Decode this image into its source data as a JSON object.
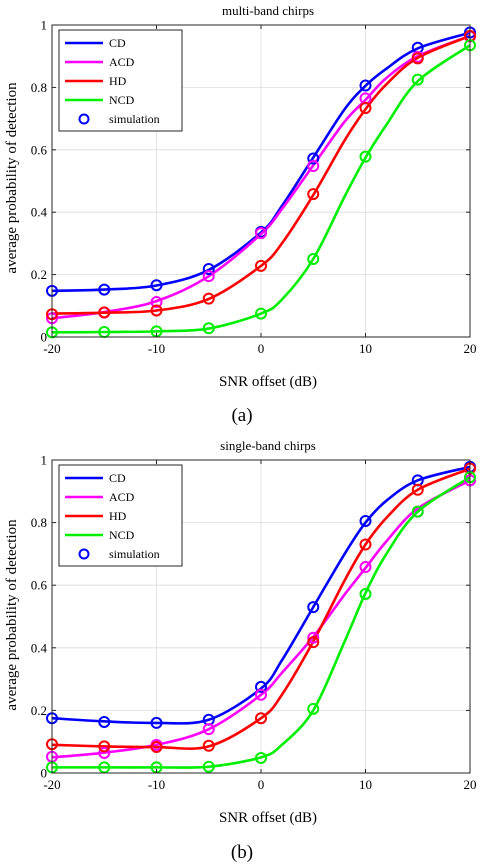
{
  "chart_data": [
    {
      "type": "line",
      "title": "multi-band chirps",
      "sublabel": "(a)",
      "xlabel": "SNR offset (dB)",
      "ylabel": "average probability of detection",
      "xlim": [
        -20,
        20
      ],
      "ylim": [
        0,
        1
      ],
      "xticks": [
        -20,
        -10,
        0,
        10,
        20
      ],
      "yticks": [
        0,
        0.2,
        0.4,
        0.6,
        0.8,
        1
      ],
      "ytick_labels": [
        "0",
        "0.2",
        "0.4",
        "0.6",
        "0.8",
        "1"
      ],
      "grid": true,
      "legend_position": "top-left",
      "sim_x": [
        -20,
        -15,
        -10,
        -5,
        0,
        5,
        10,
        15,
        20
      ],
      "series": [
        {
          "name": "CD",
          "color": "#0000ff",
          "x": [
            -20,
            -15,
            -10,
            -5,
            0,
            2,
            5,
            8,
            10,
            12,
            15,
            20
          ],
          "y": [
            0.148,
            0.152,
            0.165,
            0.215,
            0.335,
            0.42,
            0.575,
            0.73,
            0.805,
            0.86,
            0.925,
            0.975
          ],
          "sim": [
            0.148,
            0.152,
            0.166,
            0.218,
            0.337,
            0.572,
            0.806,
            0.927,
            0.976
          ]
        },
        {
          "name": "ACD",
          "color": "#ff00ff",
          "x": [
            -20,
            -15,
            -10,
            -5,
            0,
            2,
            5,
            8,
            10,
            12,
            15,
            20
          ],
          "y": [
            0.06,
            0.08,
            0.115,
            0.195,
            0.33,
            0.41,
            0.55,
            0.69,
            0.76,
            0.83,
            0.9,
            0.965
          ],
          "sim": [
            0.06,
            0.078,
            0.112,
            0.195,
            0.333,
            0.548,
            0.765,
            0.898,
            0.963
          ]
        },
        {
          "name": "HD",
          "color": "#ff0000",
          "x": [
            -20,
            -15,
            -10,
            -5,
            0,
            2,
            5,
            8,
            10,
            12,
            15,
            20
          ],
          "y": [
            0.075,
            0.078,
            0.085,
            0.122,
            0.228,
            0.3,
            0.455,
            0.63,
            0.73,
            0.81,
            0.895,
            0.965
          ],
          "sim": [
            0.073,
            0.079,
            0.085,
            0.123,
            0.228,
            0.458,
            0.734,
            0.893,
            0.965
          ]
        },
        {
          "name": "NCD",
          "color": "#00ee00",
          "x": [
            -20,
            -15,
            -10,
            -5,
            0,
            2,
            5,
            8,
            10,
            12,
            15,
            20
          ],
          "y": [
            0.015,
            0.016,
            0.018,
            0.027,
            0.075,
            0.12,
            0.25,
            0.45,
            0.575,
            0.68,
            0.82,
            0.935
          ],
          "sim": [
            0.015,
            0.016,
            0.018,
            0.028,
            0.075,
            0.25,
            0.578,
            0.825,
            0.935
          ]
        }
      ],
      "legend_sim_label": "simulation"
    },
    {
      "type": "line",
      "title": "single-band chirps",
      "sublabel": "(b)",
      "xlabel": "SNR offset (dB)",
      "ylabel": "average probability of detection",
      "xlim": [
        -20,
        20
      ],
      "ylim": [
        0,
        1
      ],
      "xticks": [
        -20,
        -10,
        0,
        10,
        20
      ],
      "yticks": [
        0,
        0.2,
        0.4,
        0.6,
        0.8,
        1
      ],
      "ytick_labels": [
        "0",
        "0.2",
        "0.4",
        "0.6",
        "0.8",
        "1"
      ],
      "grid": true,
      "legend_position": "top-left",
      "sim_x": [
        -20,
        -15,
        -10,
        -5,
        0,
        5,
        10,
        15,
        20
      ],
      "series": [
        {
          "name": "CD",
          "color": "#0000ff",
          "x": [
            -20,
            -15,
            -10,
            -5,
            0,
            2,
            5,
            8,
            10,
            12,
            15,
            20
          ],
          "y": [
            0.175,
            0.165,
            0.16,
            0.17,
            0.27,
            0.36,
            0.53,
            0.7,
            0.8,
            0.87,
            0.935,
            0.978
          ],
          "sim": [
            0.175,
            0.163,
            0.16,
            0.17,
            0.275,
            0.53,
            0.805,
            0.935,
            0.978
          ]
        },
        {
          "name": "ACD",
          "color": "#ff00ff",
          "x": [
            -20,
            -15,
            -10,
            -5,
            0,
            2,
            5,
            8,
            10,
            12,
            15,
            20
          ],
          "y": [
            0.05,
            0.065,
            0.09,
            0.14,
            0.25,
            0.32,
            0.435,
            0.57,
            0.655,
            0.74,
            0.845,
            0.935
          ],
          "sim": [
            0.052,
            0.064,
            0.09,
            0.14,
            0.25,
            0.432,
            0.658,
            0.835,
            0.935
          ]
        },
        {
          "name": "HD",
          "color": "#ff0000",
          "x": [
            -20,
            -15,
            -10,
            -5,
            0,
            2,
            5,
            8,
            10,
            12,
            15,
            20
          ],
          "y": [
            0.09,
            0.085,
            0.083,
            0.085,
            0.175,
            0.25,
            0.42,
            0.615,
            0.73,
            0.815,
            0.905,
            0.972
          ],
          "sim": [
            0.092,
            0.085,
            0.083,
            0.087,
            0.175,
            0.418,
            0.73,
            0.905,
            0.973
          ]
        },
        {
          "name": "NCD",
          "color": "#00ee00",
          "x": [
            -20,
            -15,
            -10,
            -5,
            0,
            2,
            5,
            8,
            10,
            12,
            15,
            20
          ],
          "y": [
            0.018,
            0.018,
            0.018,
            0.02,
            0.05,
            0.09,
            0.2,
            0.42,
            0.575,
            0.7,
            0.835,
            0.945
          ],
          "sim": [
            0.018,
            0.018,
            0.018,
            0.02,
            0.048,
            0.205,
            0.572,
            0.835,
            0.945
          ]
        }
      ],
      "legend_sim_label": "simulation"
    }
  ]
}
